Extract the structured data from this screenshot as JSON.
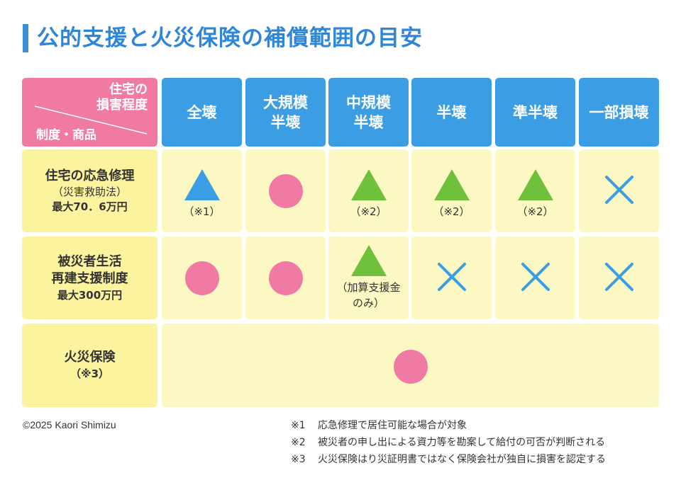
{
  "title": "公的支援と火災保険の補償範囲の目安",
  "corner": {
    "top_line1": "住宅の",
    "top_line2": "損害程度",
    "bottom": "制度・商品"
  },
  "columns": [
    {
      "line1": "全壊",
      "line2": ""
    },
    {
      "line1": "大規模",
      "line2": "半壊"
    },
    {
      "line1": "中規模",
      "line2": "半壊"
    },
    {
      "line1": "半壊",
      "line2": ""
    },
    {
      "line1": "準半壊",
      "line2": ""
    },
    {
      "line1": "一部損壊",
      "line2": ""
    }
  ],
  "rows": [
    {
      "name": "住宅の応急修理",
      "name2": "",
      "sub": "（災害救助法）",
      "limit": "最大70．6万円",
      "cells": [
        {
          "symbol": "triangle-blue",
          "note": "（※1）"
        },
        {
          "symbol": "circle",
          "note": ""
        },
        {
          "symbol": "triangle-green",
          "note": "（※2）"
        },
        {
          "symbol": "triangle-green",
          "note": "（※2）"
        },
        {
          "symbol": "triangle-green",
          "note": "（※2）"
        },
        {
          "symbol": "cross",
          "note": ""
        }
      ]
    },
    {
      "name": "被災者生活",
      "name2": "再建支援制度",
      "sub": "",
      "limit": "最大300万円",
      "cells": [
        {
          "symbol": "circle",
          "note": ""
        },
        {
          "symbol": "circle",
          "note": ""
        },
        {
          "symbol": "triangle-green",
          "note": "（加算支援金",
          "note2": "のみ）"
        },
        {
          "symbol": "cross",
          "note": ""
        },
        {
          "symbol": "cross",
          "note": ""
        },
        {
          "symbol": "cross",
          "note": ""
        }
      ]
    },
    {
      "name": "火災保険",
      "sub": "（※3）",
      "merged_symbol": "circle"
    }
  ],
  "copyright": "©2025 Kaori Shimizu",
  "footnotes": [
    {
      "mark": "※1",
      "text": "応急修理で居住可能な場合が対象"
    },
    {
      "mark": "※2",
      "text": "被災者の申し出による資力等を勘案して給付の可否が判断される"
    },
    {
      "mark": "※3",
      "text": "火災保険はり災証明書ではなく保険会社が独自に損害を認定する"
    }
  ],
  "colors": {
    "title": "#2f86d6",
    "header_blue": "#3b9de3",
    "corner_pink": "#f07aa4",
    "row_head_yellow": "#fbf39e",
    "cell_yellow": "#fbf8c4",
    "circle_pink": "#f07aa4",
    "triangle_green": "#6fc13c",
    "triangle_blue": "#3b9de3",
    "cross_blue": "#3b9de3"
  }
}
